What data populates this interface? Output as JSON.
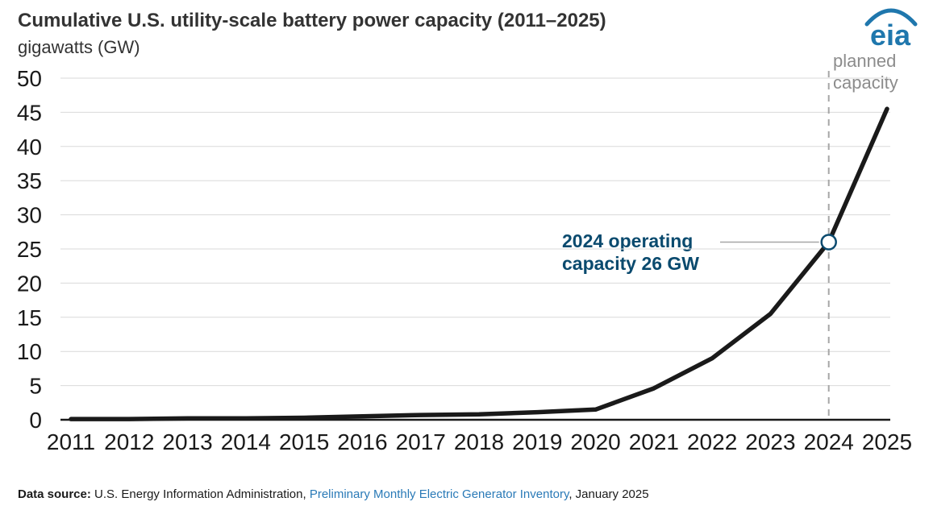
{
  "header": {
    "logo_text": "eia"
  },
  "chart_data": {
    "type": "line",
    "title": "Cumulative U.S. utility-scale battery power capacity (2011–2025)",
    "units": "gigawatts (GW)",
    "xlabel": "",
    "ylabel": "gigawatts (GW)",
    "categories": [
      "2011",
      "2012",
      "2013",
      "2014",
      "2015",
      "2016",
      "2017",
      "2018",
      "2019",
      "2020",
      "2021",
      "2022",
      "2023",
      "2024",
      "2025"
    ],
    "values": [
      0.1,
      0.1,
      0.2,
      0.2,
      0.3,
      0.5,
      0.7,
      0.8,
      1.1,
      1.5,
      4.6,
      9.0,
      15.5,
      26.0,
      45.5
    ],
    "ylim": [
      0,
      50
    ],
    "ytick_step": 5,
    "grid": true,
    "legend": "none",
    "annotations": {
      "planned_label": "planned capacity",
      "divider_year": "2024",
      "operating_line1": "2024 operating",
      "operating_line2": "capacity 26 GW",
      "marker_year": "2024",
      "marker_value": 26
    }
  },
  "footer": {
    "prefix": "Data source:",
    "before_link": " U.S. Energy Information Administration, ",
    "link_text": "Preliminary Monthly Electric Generator Inventory",
    "after_link": ", January 2025"
  },
  "colors": {
    "line": "#1a1a1a",
    "axis_text": "#1a1a1a",
    "grid": "#d9d9d9",
    "divider": "#a6a6a6",
    "annotation": "#0a4a6e",
    "planned": "#8c8c8c",
    "link": "#2a7ab7",
    "logo": "#1f77ad",
    "title_text": "#333333"
  }
}
